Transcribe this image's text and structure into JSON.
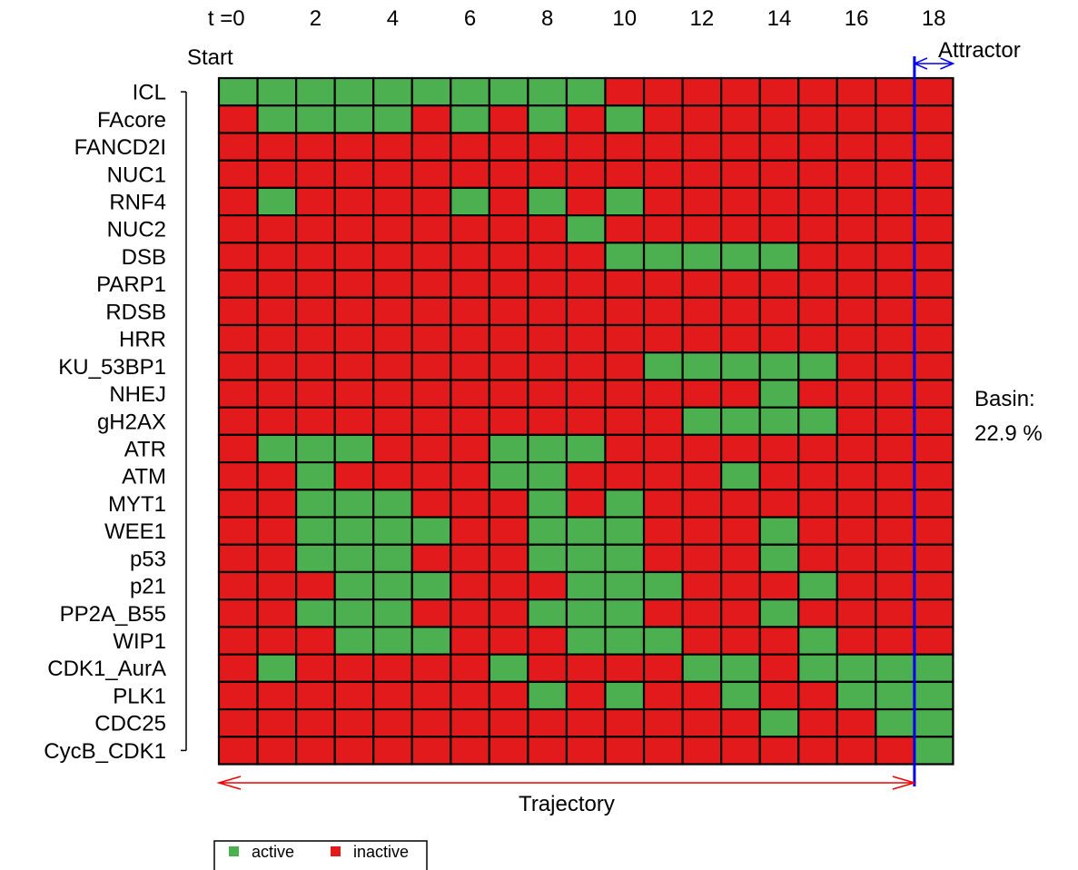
{
  "chart_data": {
    "type": "heatmap",
    "title": "",
    "x_tick_prefix": "t =",
    "x_ticks": [
      "0",
      "2",
      "4",
      "6",
      "8",
      "10",
      "12",
      "14",
      "16",
      "18"
    ],
    "time_steps": [
      0,
      1,
      2,
      3,
      4,
      5,
      6,
      7,
      8,
      9,
      10,
      11,
      12,
      13,
      14,
      15,
      16,
      17,
      18
    ],
    "genes": [
      "ICL",
      "FAcore",
      "FANCD2I",
      "NUC1",
      "RNF4",
      "NUC2",
      "DSB",
      "PARP1",
      "RDSB",
      "HRR",
      "KU_53BP1",
      "NHEJ",
      "gH2AX",
      "ATR",
      "ATM",
      "MYT1",
      "WEE1",
      "p53",
      "p21",
      "PP2A_B55",
      "WIP1",
      "CDK1_AurA",
      "PLK1",
      "CDC25",
      "CycB_CDK1"
    ],
    "values": [
      [
        1,
        1,
        1,
        1,
        1,
        1,
        1,
        1,
        1,
        1,
        0,
        0,
        0,
        0,
        0,
        0,
        0,
        0,
        0
      ],
      [
        0,
        1,
        1,
        1,
        1,
        0,
        1,
        0,
        1,
        0,
        1,
        0,
        0,
        0,
        0,
        0,
        0,
        0,
        0
      ],
      [
        0,
        0,
        0,
        0,
        0,
        0,
        0,
        0,
        0,
        0,
        0,
        0,
        0,
        0,
        0,
        0,
        0,
        0,
        0
      ],
      [
        0,
        0,
        0,
        0,
        0,
        0,
        0,
        0,
        0,
        0,
        0,
        0,
        0,
        0,
        0,
        0,
        0,
        0,
        0
      ],
      [
        0,
        1,
        0,
        0,
        0,
        0,
        1,
        0,
        1,
        0,
        1,
        0,
        0,
        0,
        0,
        0,
        0,
        0,
        0
      ],
      [
        0,
        0,
        0,
        0,
        0,
        0,
        0,
        0,
        0,
        1,
        0,
        0,
        0,
        0,
        0,
        0,
        0,
        0,
        0
      ],
      [
        0,
        0,
        0,
        0,
        0,
        0,
        0,
        0,
        0,
        0,
        1,
        1,
        1,
        1,
        1,
        0,
        0,
        0,
        0
      ],
      [
        0,
        0,
        0,
        0,
        0,
        0,
        0,
        0,
        0,
        0,
        0,
        0,
        0,
        0,
        0,
        0,
        0,
        0,
        0
      ],
      [
        0,
        0,
        0,
        0,
        0,
        0,
        0,
        0,
        0,
        0,
        0,
        0,
        0,
        0,
        0,
        0,
        0,
        0,
        0
      ],
      [
        0,
        0,
        0,
        0,
        0,
        0,
        0,
        0,
        0,
        0,
        0,
        0,
        0,
        0,
        0,
        0,
        0,
        0,
        0
      ],
      [
        0,
        0,
        0,
        0,
        0,
        0,
        0,
        0,
        0,
        0,
        0,
        1,
        1,
        1,
        1,
        1,
        0,
        0,
        0
      ],
      [
        0,
        0,
        0,
        0,
        0,
        0,
        0,
        0,
        0,
        0,
        0,
        0,
        0,
        0,
        1,
        0,
        0,
        0,
        0
      ],
      [
        0,
        0,
        0,
        0,
        0,
        0,
        0,
        0,
        0,
        0,
        0,
        0,
        1,
        1,
        1,
        1,
        0,
        0,
        0
      ],
      [
        0,
        1,
        1,
        1,
        0,
        0,
        0,
        1,
        1,
        1,
        0,
        0,
        0,
        0,
        0,
        0,
        0,
        0,
        0
      ],
      [
        0,
        0,
        1,
        0,
        0,
        0,
        0,
        1,
        1,
        0,
        0,
        0,
        0,
        1,
        0,
        0,
        0,
        0,
        0
      ],
      [
        0,
        0,
        1,
        1,
        1,
        0,
        0,
        0,
        1,
        0,
        1,
        0,
        0,
        0,
        0,
        0,
        0,
        0,
        0
      ],
      [
        0,
        0,
        1,
        1,
        1,
        1,
        0,
        0,
        1,
        1,
        1,
        0,
        0,
        0,
        1,
        0,
        0,
        0,
        0
      ],
      [
        0,
        0,
        1,
        1,
        1,
        0,
        0,
        0,
        1,
        1,
        1,
        0,
        0,
        0,
        1,
        0,
        0,
        0,
        0
      ],
      [
        0,
        0,
        0,
        1,
        1,
        1,
        0,
        0,
        0,
        1,
        1,
        1,
        0,
        0,
        0,
        1,
        0,
        0,
        0
      ],
      [
        0,
        0,
        1,
        1,
        1,
        0,
        0,
        0,
        1,
        1,
        1,
        0,
        0,
        0,
        1,
        0,
        0,
        0,
        0
      ],
      [
        0,
        0,
        0,
        1,
        1,
        1,
        0,
        0,
        0,
        1,
        1,
        1,
        0,
        0,
        0,
        1,
        0,
        0,
        0
      ],
      [
        0,
        1,
        0,
        0,
        0,
        0,
        0,
        1,
        0,
        0,
        0,
        0,
        1,
        1,
        0,
        1,
        1,
        1,
        1
      ],
      [
        0,
        0,
        0,
        0,
        0,
        0,
        0,
        0,
        1,
        0,
        1,
        0,
        0,
        1,
        0,
        0,
        1,
        1,
        1
      ],
      [
        0,
        0,
        0,
        0,
        0,
        0,
        0,
        0,
        0,
        0,
        0,
        0,
        0,
        0,
        1,
        0,
        0,
        1,
        1
      ],
      [
        0,
        0,
        0,
        0,
        0,
        0,
        0,
        0,
        0,
        0,
        0,
        0,
        0,
        0,
        0,
        0,
        0,
        0,
        1
      ]
    ],
    "colors": {
      "active": "#4CAF50",
      "inactive": "#E31A1C",
      "attractor_line": "#0000EE",
      "trajectory_arrow": "#EE0000"
    },
    "annotations": {
      "start": "Start",
      "attractor": "Attractor",
      "trajectory": "Trajectory",
      "basin_label": "Basin:",
      "basin_value": "22.9 %"
    },
    "attractor_start_step": 18,
    "legend": {
      "position": "bottom-left",
      "items": [
        {
          "label": "active",
          "state": 1
        },
        {
          "label": "inactive",
          "state": 0
        }
      ]
    },
    "grid": false
  }
}
